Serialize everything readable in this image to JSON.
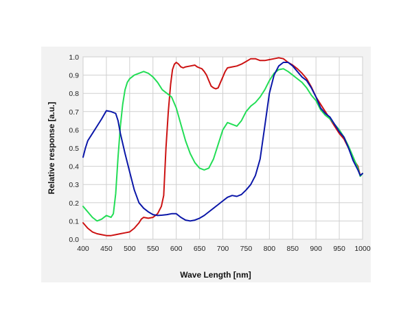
{
  "chart_data": {
    "type": "line",
    "title": "",
    "xlabel": "Wave Length [nm]",
    "ylabel": "Relative  response [a.u.]",
    "xlim": [
      400,
      1000
    ],
    "ylim": [
      0,
      1.0
    ],
    "x_ticks": [
      "400",
      "450",
      "500",
      "550",
      "600",
      "650",
      "700",
      "750",
      "800",
      "850",
      "900",
      "950",
      "1000"
    ],
    "y_ticks": [
      "0.0",
      "0.1",
      "0.2",
      "0.3",
      "0.4",
      "0.5",
      "0.6",
      "0.7",
      "0.8",
      "0.9",
      "1.0"
    ],
    "grid": true,
    "legend": "none",
    "series": [
      {
        "color": "#cc1111",
        "points": [
          [
            400,
            0.09
          ],
          [
            410,
            0.06
          ],
          [
            420,
            0.04
          ],
          [
            430,
            0.03
          ],
          [
            440,
            0.025
          ],
          [
            450,
            0.02
          ],
          [
            460,
            0.02
          ],
          [
            470,
            0.025
          ],
          [
            480,
            0.03
          ],
          [
            490,
            0.035
          ],
          [
            500,
            0.04
          ],
          [
            510,
            0.06
          ],
          [
            520,
            0.09
          ],
          [
            525,
            0.11
          ],
          [
            530,
            0.12
          ],
          [
            540,
            0.115
          ],
          [
            550,
            0.12
          ],
          [
            560,
            0.14
          ],
          [
            568,
            0.18
          ],
          [
            573,
            0.24
          ],
          [
            578,
            0.5
          ],
          [
            583,
            0.7
          ],
          [
            588,
            0.85
          ],
          [
            592,
            0.93
          ],
          [
            596,
            0.96
          ],
          [
            600,
            0.97
          ],
          [
            605,
            0.96
          ],
          [
            610,
            0.945
          ],
          [
            615,
            0.94
          ],
          [
            620,
            0.945
          ],
          [
            630,
            0.95
          ],
          [
            640,
            0.955
          ],
          [
            645,
            0.945
          ],
          [
            650,
            0.94
          ],
          [
            655,
            0.935
          ],
          [
            660,
            0.92
          ],
          [
            665,
            0.9
          ],
          [
            670,
            0.87
          ],
          [
            675,
            0.84
          ],
          [
            680,
            0.83
          ],
          [
            685,
            0.825
          ],
          [
            690,
            0.83
          ],
          [
            695,
            0.86
          ],
          [
            700,
            0.89
          ],
          [
            705,
            0.92
          ],
          [
            710,
            0.94
          ],
          [
            720,
            0.945
          ],
          [
            730,
            0.95
          ],
          [
            740,
            0.96
          ],
          [
            750,
            0.975
          ],
          [
            760,
            0.99
          ],
          [
            770,
            0.99
          ],
          [
            780,
            0.98
          ],
          [
            790,
            0.98
          ],
          [
            800,
            0.985
          ],
          [
            810,
            0.99
          ],
          [
            820,
            0.995
          ],
          [
            830,
            0.99
          ],
          [
            840,
            0.97
          ],
          [
            850,
            0.955
          ],
          [
            860,
            0.935
          ],
          [
            870,
            0.91
          ],
          [
            880,
            0.88
          ],
          [
            890,
            0.835
          ],
          [
            900,
            0.78
          ],
          [
            910,
            0.74
          ],
          [
            920,
            0.7
          ],
          [
            930,
            0.66
          ],
          [
            940,
            0.62
          ],
          [
            950,
            0.58
          ],
          [
            960,
            0.55
          ],
          [
            970,
            0.5
          ],
          [
            980,
            0.44
          ],
          [
            990,
            0.4
          ],
          [
            995,
            0.35
          ],
          [
            1000,
            0.36
          ]
        ]
      },
      {
        "color": "#22dd55",
        "points": [
          [
            400,
            0.18
          ],
          [
            410,
            0.15
          ],
          [
            420,
            0.12
          ],
          [
            430,
            0.1
          ],
          [
            440,
            0.11
          ],
          [
            450,
            0.13
          ],
          [
            460,
            0.12
          ],
          [
            465,
            0.14
          ],
          [
            470,
            0.25
          ],
          [
            475,
            0.45
          ],
          [
            480,
            0.62
          ],
          [
            485,
            0.74
          ],
          [
            490,
            0.82
          ],
          [
            495,
            0.86
          ],
          [
            500,
            0.88
          ],
          [
            510,
            0.9
          ],
          [
            520,
            0.91
          ],
          [
            530,
            0.92
          ],
          [
            540,
            0.91
          ],
          [
            550,
            0.89
          ],
          [
            560,
            0.86
          ],
          [
            570,
            0.82
          ],
          [
            580,
            0.8
          ],
          [
            590,
            0.78
          ],
          [
            600,
            0.72
          ],
          [
            610,
            0.63
          ],
          [
            620,
            0.54
          ],
          [
            630,
            0.47
          ],
          [
            640,
            0.42
          ],
          [
            650,
            0.39
          ],
          [
            660,
            0.38
          ],
          [
            670,
            0.39
          ],
          [
            680,
            0.44
          ],
          [
            690,
            0.52
          ],
          [
            700,
            0.6
          ],
          [
            710,
            0.64
          ],
          [
            720,
            0.63
          ],
          [
            730,
            0.62
          ],
          [
            740,
            0.65
          ],
          [
            750,
            0.7
          ],
          [
            760,
            0.73
          ],
          [
            770,
            0.75
          ],
          [
            780,
            0.78
          ],
          [
            790,
            0.82
          ],
          [
            800,
            0.87
          ],
          [
            810,
            0.91
          ],
          [
            820,
            0.93
          ],
          [
            830,
            0.935
          ],
          [
            840,
            0.92
          ],
          [
            850,
            0.9
          ],
          [
            860,
            0.88
          ],
          [
            870,
            0.86
          ],
          [
            880,
            0.83
          ],
          [
            890,
            0.79
          ],
          [
            900,
            0.76
          ],
          [
            910,
            0.71
          ],
          [
            920,
            0.68
          ],
          [
            930,
            0.66
          ],
          [
            940,
            0.63
          ],
          [
            950,
            0.6
          ],
          [
            960,
            0.56
          ],
          [
            970,
            0.51
          ],
          [
            980,
            0.45
          ],
          [
            990,
            0.39
          ],
          [
            995,
            0.345
          ],
          [
            1000,
            0.36
          ]
        ]
      },
      {
        "color": "#0a16a8",
        "points": [
          [
            400,
            0.45
          ],
          [
            405,
            0.5
          ],
          [
            410,
            0.54
          ],
          [
            420,
            0.58
          ],
          [
            430,
            0.62
          ],
          [
            440,
            0.66
          ],
          [
            450,
            0.705
          ],
          [
            460,
            0.7
          ],
          [
            470,
            0.69
          ],
          [
            475,
            0.65
          ],
          [
            480,
            0.58
          ],
          [
            490,
            0.47
          ],
          [
            500,
            0.37
          ],
          [
            510,
            0.27
          ],
          [
            520,
            0.2
          ],
          [
            530,
            0.17
          ],
          [
            540,
            0.15
          ],
          [
            550,
            0.135
          ],
          [
            560,
            0.13
          ],
          [
            570,
            0.132
          ],
          [
            580,
            0.135
          ],
          [
            590,
            0.14
          ],
          [
            600,
            0.14
          ],
          [
            610,
            0.12
          ],
          [
            620,
            0.105
          ],
          [
            630,
            0.1
          ],
          [
            640,
            0.105
          ],
          [
            650,
            0.115
          ],
          [
            660,
            0.13
          ],
          [
            670,
            0.15
          ],
          [
            680,
            0.17
          ],
          [
            690,
            0.19
          ],
          [
            700,
            0.21
          ],
          [
            710,
            0.23
          ],
          [
            720,
            0.24
          ],
          [
            730,
            0.235
          ],
          [
            740,
            0.245
          ],
          [
            750,
            0.27
          ],
          [
            760,
            0.3
          ],
          [
            770,
            0.35
          ],
          [
            780,
            0.44
          ],
          [
            790,
            0.62
          ],
          [
            800,
            0.8
          ],
          [
            810,
            0.9
          ],
          [
            820,
            0.95
          ],
          [
            830,
            0.97
          ],
          [
            840,
            0.97
          ],
          [
            850,
            0.95
          ],
          [
            860,
            0.92
          ],
          [
            870,
            0.89
          ],
          [
            880,
            0.87
          ],
          [
            890,
            0.83
          ],
          [
            900,
            0.78
          ],
          [
            910,
            0.72
          ],
          [
            920,
            0.69
          ],
          [
            930,
            0.67
          ],
          [
            940,
            0.63
          ],
          [
            950,
            0.59
          ],
          [
            960,
            0.56
          ],
          [
            970,
            0.5
          ],
          [
            980,
            0.43
          ],
          [
            990,
            0.38
          ],
          [
            995,
            0.35
          ],
          [
            1000,
            0.36
          ]
        ]
      }
    ]
  }
}
